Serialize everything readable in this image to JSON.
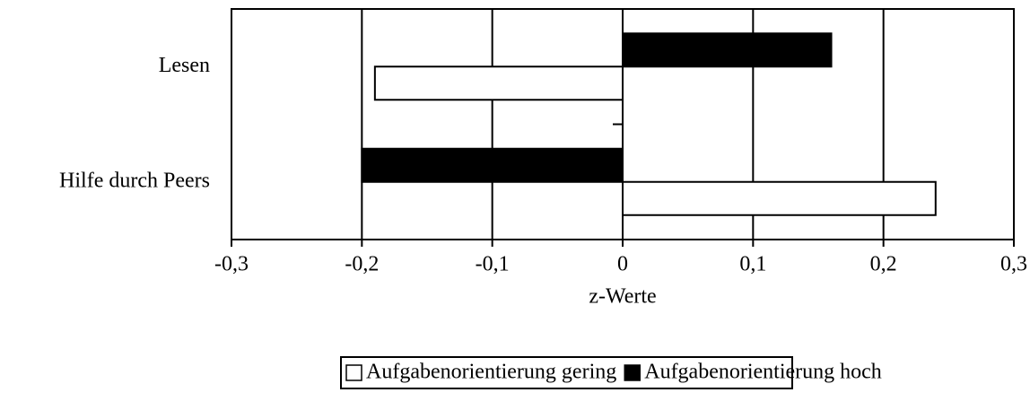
{
  "chart_data": {
    "type": "hbar",
    "categories": [
      "Lesen",
      "Hilfe durch Peers"
    ],
    "series": [
      {
        "name": "Aufgabenorientierung gering",
        "color": "#ffffff",
        "values": [
          -0.19,
          0.24
        ]
      },
      {
        "name": "Aufgabenorientierung hoch",
        "color": "#000000",
        "values": [
          0.16,
          -0.2
        ]
      }
    ],
    "xlabel": "z-Werte",
    "xlim": [
      -0.3,
      0.3
    ],
    "xticks": [
      {
        "value": -0.3,
        "label": "-0,3"
      },
      {
        "value": -0.2,
        "label": "-0,2"
      },
      {
        "value": -0.1,
        "label": "-0,1"
      },
      0,
      {
        "value": 0.1,
        "label": "0,1"
      },
      {
        "value": 0.2,
        "label": "0,2"
      },
      {
        "value": 0.3,
        "label": "0,3"
      }
    ],
    "grid": true,
    "legend": "bottom"
  }
}
